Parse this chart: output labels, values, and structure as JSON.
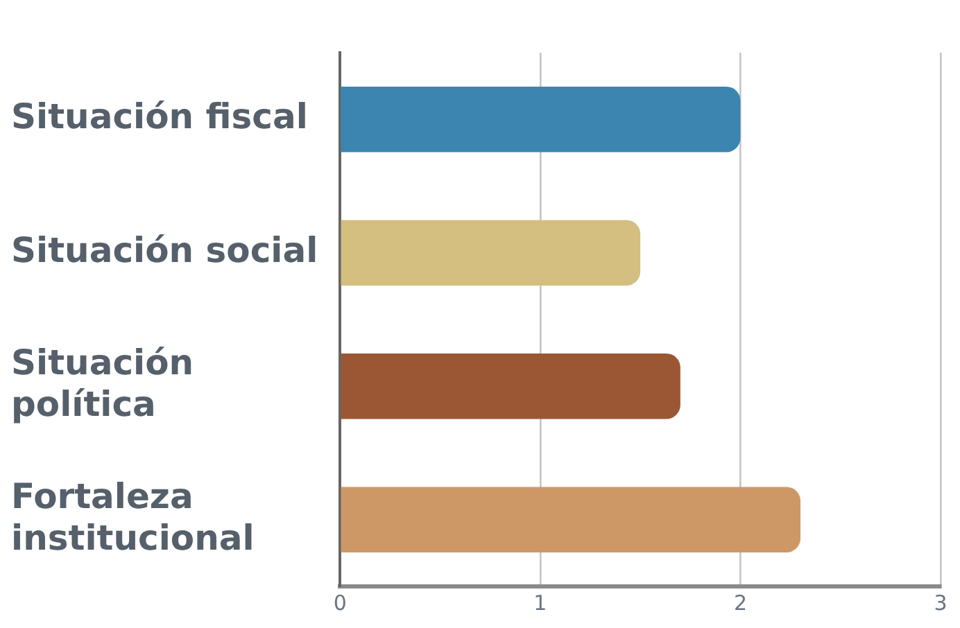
{
  "chart_data": {
    "type": "bar",
    "orientation": "horizontal",
    "categories": [
      "Situación fiscal",
      "Situación social",
      "Situación política",
      "Fortaleza institucional"
    ],
    "values": [
      2.0,
      1.5,
      1.7,
      2.3
    ],
    "colors": [
      "#3d85b1",
      "#d4be80",
      "#9b5734",
      "#cd9866"
    ],
    "xlim": [
      0,
      3
    ],
    "xticks": [
      0,
      1,
      2,
      3
    ],
    "grid": "x",
    "legend": false
  }
}
